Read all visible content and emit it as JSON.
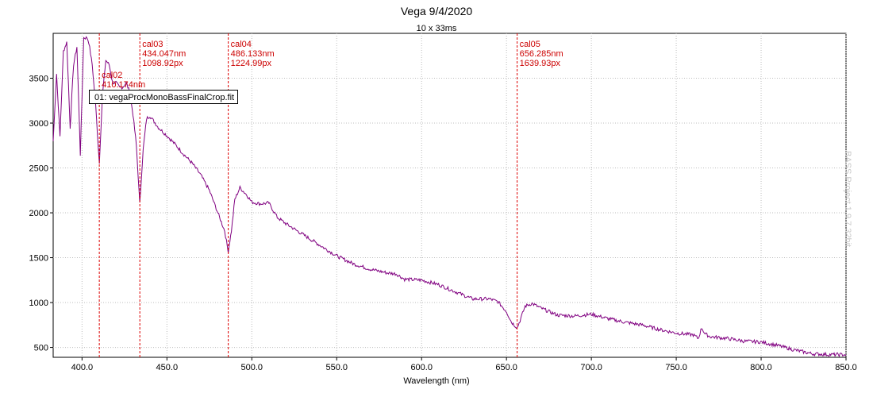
{
  "chart_data": {
    "type": "line",
    "title": "Vega 9/4/2020",
    "subtitle": "10 x 33ms",
    "xlabel": "Wavelength (nm)",
    "ylabel": "",
    "xlim": [
      383,
      850
    ],
    "ylim": [
      390,
      4000
    ],
    "grid": true,
    "line_color": "#800080",
    "marker_color": "#dd0000",
    "x_ticks": [
      {
        "value": 400,
        "label": "400.0"
      },
      {
        "value": 450,
        "label": "450.0"
      },
      {
        "value": 500,
        "label": "500.0"
      },
      {
        "value": 550,
        "label": "550.0"
      },
      {
        "value": 600,
        "label": "600.0"
      },
      {
        "value": 650,
        "label": "650.0"
      },
      {
        "value": 700,
        "label": "700.0"
      },
      {
        "value": 750,
        "label": "750.0"
      },
      {
        "value": 800,
        "label": "800.0"
      },
      {
        "value": 850,
        "label": "850.0"
      }
    ],
    "y_ticks": [
      {
        "value": 500,
        "label": "500"
      },
      {
        "value": 1000,
        "label": "1000"
      },
      {
        "value": 1500,
        "label": "1500"
      },
      {
        "value": 2000,
        "label": "2000"
      },
      {
        "value": 2500,
        "label": "2500"
      },
      {
        "value": 3000,
        "label": "3000"
      },
      {
        "value": 3500,
        "label": "3500"
      }
    ],
    "legend": "01: vegaProcMonoBassFinalCrop.fit",
    "series": [
      {
        "x": [
          383,
          385,
          387,
          389,
          391,
          393,
          395,
          397,
          399,
          401,
          403,
          404,
          406,
          408,
          410.2,
          412,
          414,
          416,
          418,
          420,
          422,
          424,
          426,
          428,
          430,
          432,
          434.0,
          436,
          438,
          440,
          445,
          450,
          455,
          460,
          465,
          470,
          475,
          480,
          484,
          486.1,
          488,
          490,
          493,
          497,
          500,
          505,
          510,
          515,
          520,
          530,
          540,
          550,
          560,
          570,
          580,
          585,
          590,
          600,
          610,
          620,
          630,
          640,
          645,
          650,
          653,
          656.3,
          658,
          661,
          665,
          670,
          680,
          690,
          700,
          710,
          720,
          730,
          740,
          750,
          760,
          763,
          765,
          767,
          770,
          780,
          790,
          800,
          810,
          820,
          830,
          840,
          850
        ],
        "y": [
          2800,
          3550,
          2850,
          3800,
          3900,
          2950,
          3650,
          3850,
          2650,
          3950,
          3950,
          3900,
          3650,
          3200,
          2550,
          3300,
          3700,
          3650,
          3450,
          3450,
          3400,
          3400,
          3450,
          3350,
          3100,
          2750,
          2100,
          2700,
          3050,
          3080,
          2950,
          2860,
          2760,
          2650,
          2550,
          2420,
          2250,
          2000,
          1800,
          1570,
          1800,
          2150,
          2280,
          2200,
          2120,
          2100,
          2110,
          1950,
          1880,
          1760,
          1640,
          1520,
          1430,
          1370,
          1330,
          1320,
          1260,
          1250,
          1200,
          1120,
          1040,
          1040,
          1010,
          900,
          780,
          720,
          800,
          960,
          990,
          940,
          860,
          850,
          870,
          820,
          780,
          750,
          700,
          660,
          640,
          600,
          720,
          650,
          620,
          600,
          570,
          560,
          520,
          470,
          430,
          420,
          420
        ]
      }
    ],
    "markers": [
      {
        "wavelength": 410.174,
        "name": "cal02",
        "nm_label": "410.174nm",
        "px_label": ""
      },
      {
        "wavelength": 434.047,
        "name": "cal03",
        "nm_label": "434.047nm",
        "px_label": "1098.92px"
      },
      {
        "wavelength": 486.133,
        "name": "cal04",
        "nm_label": "486.133nm",
        "px_label": "1224.99px"
      },
      {
        "wavelength": 656.285,
        "name": "cal05",
        "nm_label": "656.285nm",
        "px_label": "1639.93px"
      }
    ],
    "watermark": "BASS Project 1.9.7 32bit"
  }
}
